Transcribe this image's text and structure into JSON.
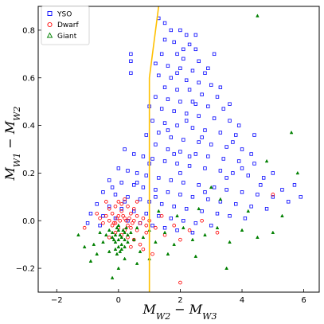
{
  "chart_data": {
    "type": "scatter",
    "title": "",
    "xlabel_main": "M",
    "xlabel_sub1": "W2",
    "xlabel_op": " − ",
    "xlabel_sub2": "W3",
    "ylabel_main": "M",
    "ylabel_sub1": "W1",
    "ylabel_op": " − ",
    "ylabel_sub2": "W2",
    "xlim": [
      -2.6,
      6.5
    ],
    "ylim": [
      -0.3,
      0.9
    ],
    "xticks": [
      -2,
      0,
      2,
      4,
      6
    ],
    "yticks": [
      -0.2,
      0.0,
      0.2,
      0.4,
      0.6,
      0.8
    ],
    "xtick_labels": [
      "−2",
      "0",
      "2",
      "4",
      "6"
    ],
    "ytick_labels": [
      "−0.2",
      "0.0",
      "0.2",
      "0.4",
      "0.6",
      "0.8"
    ],
    "legend_position": "upper-left",
    "grid": false,
    "series": [
      {
        "name": "YSO",
        "marker": "square",
        "color": "#0000ff",
        "points": [
          [
            1.3,
            0.85
          ],
          [
            1.5,
            0.83
          ],
          [
            1.7,
            0.8
          ],
          [
            2.0,
            0.8
          ],
          [
            2.2,
            0.78
          ],
          [
            1.5,
            0.76
          ],
          [
            1.8,
            0.75
          ],
          [
            2.3,
            0.74
          ],
          [
            2.5,
            0.72
          ],
          [
            1.4,
            0.7
          ],
          [
            1.9,
            0.7
          ],
          [
            2.1,
            0.68
          ],
          [
            2.6,
            0.67
          ],
          [
            1.2,
            0.66
          ],
          [
            0.4,
            0.7
          ],
          [
            0.4,
            0.67
          ],
          [
            1.6,
            0.65
          ],
          [
            2.0,
            0.64
          ],
          [
            2.4,
            0.63
          ],
          [
            2.8,
            0.62
          ],
          [
            1.3,
            0.61
          ],
          [
            1.7,
            0.6
          ],
          [
            2.2,
            0.59
          ],
          [
            2.6,
            0.58
          ],
          [
            3.0,
            0.57
          ],
          [
            1.5,
            0.56
          ],
          [
            1.9,
            0.55
          ],
          [
            2.3,
            0.55
          ],
          [
            2.7,
            0.53
          ],
          [
            3.2,
            0.52
          ],
          [
            1.2,
            0.52
          ],
          [
            1.6,
            0.51
          ],
          [
            2.0,
            0.5
          ],
          [
            2.5,
            0.49
          ],
          [
            2.9,
            0.48
          ],
          [
            3.4,
            0.47
          ],
          [
            1.4,
            0.47
          ],
          [
            1.8,
            0.46
          ],
          [
            2.2,
            0.45
          ],
          [
            2.6,
            0.44
          ],
          [
            3.1,
            0.43
          ],
          [
            3.6,
            0.42
          ],
          [
            1.1,
            0.42
          ],
          [
            1.5,
            0.41
          ],
          [
            1.9,
            0.4
          ],
          [
            2.4,
            0.39
          ],
          [
            2.8,
            0.38
          ],
          [
            3.3,
            0.37
          ],
          [
            3.8,
            0.36
          ],
          [
            1.3,
            0.37
          ],
          [
            1.7,
            0.35
          ],
          [
            2.1,
            0.34
          ],
          [
            2.6,
            0.33
          ],
          [
            3.0,
            0.32
          ],
          [
            3.5,
            0.31
          ],
          [
            4.0,
            0.3
          ],
          [
            1.2,
            0.32
          ],
          [
            1.6,
            0.3
          ],
          [
            2.0,
            0.29
          ],
          [
            2.5,
            0.28
          ],
          [
            2.9,
            0.27
          ],
          [
            3.4,
            0.26
          ],
          [
            3.9,
            0.25
          ],
          [
            4.4,
            0.24
          ],
          [
            0.2,
            0.3
          ],
          [
            0.5,
            0.28
          ],
          [
            0.8,
            0.27
          ],
          [
            1.1,
            0.26
          ],
          [
            1.5,
            0.25
          ],
          [
            1.9,
            0.24
          ],
          [
            2.3,
            0.23
          ],
          [
            2.8,
            0.22
          ],
          [
            3.3,
            0.21
          ],
          [
            3.7,
            0.2
          ],
          [
            4.2,
            0.19
          ],
          [
            4.7,
            0.18
          ],
          [
            0.0,
            0.22
          ],
          [
            0.3,
            0.21
          ],
          [
            0.6,
            0.2
          ],
          [
            0.9,
            0.19
          ],
          [
            1.3,
            0.18
          ],
          [
            1.7,
            0.17
          ],
          [
            2.1,
            0.16
          ],
          [
            2.6,
            0.15
          ],
          [
            3.1,
            0.14
          ],
          [
            3.5,
            0.13
          ],
          [
            4.0,
            0.12
          ],
          [
            4.5,
            0.11
          ],
          [
            5.0,
            0.1
          ],
          [
            -0.3,
            0.17
          ],
          [
            0.1,
            0.16
          ],
          [
            0.5,
            0.15
          ],
          [
            0.8,
            0.14
          ],
          [
            1.2,
            0.13
          ],
          [
            1.6,
            0.12
          ],
          [
            2.0,
            0.11
          ],
          [
            2.4,
            0.1
          ],
          [
            2.9,
            0.09
          ],
          [
            3.3,
            0.08
          ],
          [
            3.8,
            0.07
          ],
          [
            4.3,
            0.06
          ],
          [
            4.8,
            0.05
          ],
          [
            -0.5,
            0.12
          ],
          [
            -0.1,
            0.11
          ],
          [
            0.3,
            0.1
          ],
          [
            0.7,
            0.09
          ],
          [
            1.0,
            0.08
          ],
          [
            1.4,
            0.07
          ],
          [
            1.8,
            0.06
          ],
          [
            2.2,
            0.05
          ],
          [
            2.7,
            0.04
          ],
          [
            3.2,
            0.03
          ],
          [
            3.6,
            0.02
          ],
          [
            4.1,
            0.01
          ],
          [
            -0.7,
            0.07
          ],
          [
            -0.3,
            0.06
          ],
          [
            0.1,
            0.05
          ],
          [
            0.5,
            0.04
          ],
          [
            0.9,
            0.03
          ],
          [
            1.3,
            0.02
          ],
          [
            1.7,
            0.01
          ],
          [
            2.1,
            0.0
          ],
          [
            2.5,
            -0.01
          ],
          [
            3.0,
            -0.02
          ],
          [
            -0.9,
            0.03
          ],
          [
            -0.5,
            0.02
          ],
          [
            -0.1,
            0.01
          ],
          [
            0.3,
            0.0
          ],
          [
            0.7,
            -0.01
          ],
          [
            1.1,
            -0.02
          ],
          [
            1.5,
            -0.03
          ],
          [
            1.9,
            -0.04
          ],
          [
            2.4,
            -0.05
          ],
          [
            -1.0,
            -0.01
          ],
          [
            -0.6,
            -0.02
          ],
          [
            2.0,
            0.2
          ],
          [
            2.3,
            0.27
          ],
          [
            2.7,
            0.35
          ],
          [
            1.8,
            0.28
          ],
          [
            2.2,
            0.42
          ],
          [
            1.6,
            0.38
          ],
          [
            2.4,
            0.5
          ],
          [
            1.9,
            0.62
          ],
          [
            2.1,
            0.72
          ],
          [
            4.0,
            0.22
          ],
          [
            4.3,
            0.28
          ],
          [
            3.7,
            0.33
          ],
          [
            4.6,
            0.15
          ],
          [
            5.0,
            0.2
          ],
          [
            5.3,
            0.13
          ],
          [
            5.5,
            0.08
          ],
          [
            3.9,
            0.4
          ],
          [
            4.4,
            0.36
          ],
          [
            3.6,
            0.49
          ],
          [
            3.3,
            0.56
          ],
          [
            2.9,
            0.64
          ],
          [
            3.1,
            0.7
          ],
          [
            2.5,
            0.78
          ],
          [
            1.0,
            0.24
          ],
          [
            0.6,
            0.16
          ],
          [
            5.7,
            0.15
          ],
          [
            5.9,
            0.1
          ],
          [
            0.4,
            0.62
          ],
          [
            1.0,
            0.48
          ],
          [
            0.9,
            0.36
          ],
          [
            3.5,
            0.18
          ],
          [
            2.8,
            0.12
          ],
          [
            1.2,
            0.1
          ],
          [
            0.2,
            0.08
          ],
          [
            -0.2,
            0.14
          ]
        ]
      },
      {
        "name": "Dwarf",
        "marker": "circle",
        "color": "#ff0000",
        "points": [
          [
            -0.4,
            0.02
          ],
          [
            -0.3,
            0.0
          ],
          [
            -0.2,
            0.03
          ],
          [
            -0.1,
            -0.01
          ],
          [
            0.0,
            0.02
          ],
          [
            0.1,
            0.04
          ],
          [
            0.2,
            0.01
          ],
          [
            0.3,
            -0.02
          ],
          [
            0.4,
            0.03
          ],
          [
            0.5,
            0.0
          ],
          [
            0.6,
            0.02
          ],
          [
            0.7,
            -0.01
          ],
          [
            -0.3,
            0.05
          ],
          [
            -0.1,
            0.06
          ],
          [
            0.1,
            0.07
          ],
          [
            0.3,
            0.06
          ],
          [
            0.5,
            0.05
          ],
          [
            0.0,
            -0.03
          ],
          [
            0.2,
            -0.04
          ],
          [
            -0.2,
            -0.02
          ],
          [
            0.4,
            -0.03
          ],
          [
            0.6,
            -0.04
          ],
          [
            0.8,
            0.01
          ],
          [
            0.9,
            -0.02
          ],
          [
            1.0,
            0.0
          ],
          [
            -0.5,
            -0.01
          ],
          [
            -0.6,
            0.01
          ],
          [
            0.05,
            0.0
          ],
          [
            0.15,
            0.02
          ],
          [
            0.25,
            0.0
          ],
          [
            -0.05,
            0.01
          ],
          [
            -0.15,
            -0.01
          ],
          [
            0.35,
            0.01
          ],
          [
            0.45,
            -0.01
          ],
          [
            0.0,
            0.08
          ],
          [
            0.2,
            0.09
          ],
          [
            -0.1,
            -0.05
          ],
          [
            0.1,
            -0.06
          ],
          [
            0.3,
            -0.07
          ],
          [
            0.5,
            -0.08
          ],
          [
            0.7,
            -0.1
          ],
          [
            0.9,
            -0.05
          ],
          [
            1.2,
            -0.03
          ],
          [
            1.5,
            -0.06
          ],
          [
            2.0,
            -0.08
          ],
          [
            0.8,
            -0.12
          ],
          [
            0.4,
            -0.11
          ],
          [
            -0.3,
            -0.07
          ],
          [
            -0.7,
            0.03
          ],
          [
            -1.1,
            -0.03
          ],
          [
            1.4,
            0.02
          ],
          [
            1.8,
            -0.02
          ],
          [
            2.3,
            -0.04
          ],
          [
            2.7,
            0.0
          ],
          [
            3.2,
            -0.05
          ],
          [
            2.0,
            -0.26
          ],
          [
            5.0,
            0.11
          ],
          [
            1.1,
            -0.14
          ],
          [
            0.6,
            0.08
          ],
          [
            -0.4,
            0.08
          ]
        ]
      },
      {
        "name": "Giant",
        "marker": "triangle",
        "color": "#008000",
        "points": [
          [
            -0.2,
            -0.05
          ],
          [
            -0.1,
            -0.06
          ],
          [
            0.0,
            -0.04
          ],
          [
            0.1,
            -0.07
          ],
          [
            0.2,
            -0.05
          ],
          [
            0.0,
            -0.08
          ],
          [
            -0.1,
            -0.09
          ],
          [
            0.1,
            -0.1
          ],
          [
            0.2,
            -0.08
          ],
          [
            -0.2,
            -0.07
          ],
          [
            0.05,
            -0.06
          ],
          [
            0.15,
            -0.04
          ],
          [
            -0.05,
            -0.03
          ],
          [
            0.0,
            -0.11
          ],
          [
            0.1,
            -0.12
          ],
          [
            -0.1,
            -0.12
          ],
          [
            0.2,
            -0.11
          ],
          [
            0.3,
            -0.06
          ],
          [
            -0.3,
            -0.04
          ],
          [
            0.3,
            -0.09
          ],
          [
            0.0,
            -0.02
          ],
          [
            -0.15,
            -0.08
          ],
          [
            0.25,
            -0.03
          ],
          [
            0.05,
            -0.13
          ],
          [
            -0.05,
            -0.14
          ],
          [
            0.4,
            -0.05
          ],
          [
            -0.4,
            -0.06
          ],
          [
            0.5,
            -0.08
          ],
          [
            -0.5,
            -0.09
          ],
          [
            0.6,
            -0.03
          ],
          [
            -0.6,
            -0.05
          ],
          [
            0.8,
            -0.07
          ],
          [
            -0.8,
            -0.1
          ],
          [
            1.0,
            -0.04
          ],
          [
            1.2,
            -0.09
          ],
          [
            1.5,
            -0.05
          ],
          [
            1.8,
            -0.1
          ],
          [
            2.1,
            -0.03
          ],
          [
            2.4,
            -0.08
          ],
          [
            2.8,
            -0.06
          ],
          [
            3.2,
            -0.03
          ],
          [
            3.6,
            -0.09
          ],
          [
            4.0,
            -0.04
          ],
          [
            4.5,
            -0.07
          ],
          [
            5.0,
            -0.05
          ],
          [
            1.0,
            -0.16
          ],
          [
            0.6,
            -0.18
          ],
          [
            -0.2,
            -0.24
          ],
          [
            -0.9,
            -0.17
          ],
          [
            -1.3,
            -0.06
          ],
          [
            -1.1,
            -0.11
          ],
          [
            2.5,
            -0.15
          ],
          [
            3.5,
            -0.2
          ],
          [
            1.6,
            -0.14
          ],
          [
            4.5,
            0.86
          ],
          [
            5.8,
            0.2
          ],
          [
            5.6,
            0.37
          ],
          [
            3.3,
            0.09
          ],
          [
            2.6,
            0.05
          ],
          [
            0.0,
            -0.2
          ],
          [
            0.2,
            -0.16
          ],
          [
            -0.3,
            -0.13
          ],
          [
            0.7,
            -0.13
          ],
          [
            4.2,
            0.04
          ],
          [
            5.3,
            0.02
          ],
          [
            1.3,
            0.04
          ],
          [
            -0.7,
            -0.14
          ],
          [
            1.9,
            0.02
          ],
          [
            3.0,
            0.14
          ],
          [
            4.8,
            0.25
          ]
        ]
      }
    ],
    "boundary_line": {
      "color": "#ffc000",
      "x": [
        1.0,
        1.0,
        1.3
      ],
      "y": [
        -0.3,
        0.6,
        0.9
      ]
    }
  }
}
